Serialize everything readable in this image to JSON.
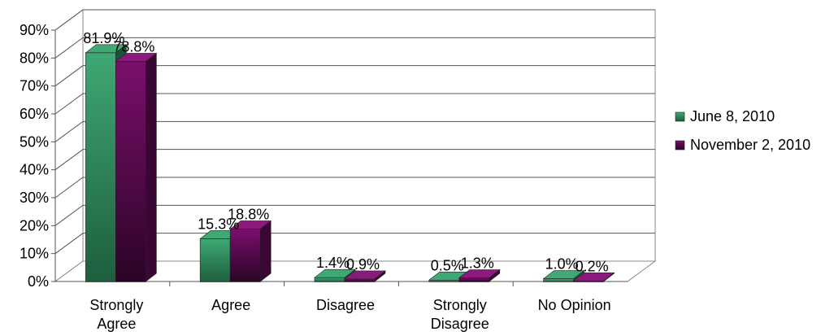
{
  "chart_data": {
    "type": "bar",
    "categories": [
      [
        "Strongly",
        "Agree"
      ],
      [
        "Agree"
      ],
      [
        "Disagree"
      ],
      [
        "Strongly",
        "Disagree"
      ],
      [
        "No Opinion"
      ]
    ],
    "series": [
      {
        "name": "June 8, 2010",
        "color": "#2e8b57",
        "values": [
          81.9,
          15.3,
          1.4,
          0.5,
          1.0
        ],
        "labels": [
          "81.9%",
          "15.3%",
          "1.4%",
          "0.5%",
          "1.0%"
        ]
      },
      {
        "name": "November 2, 2010",
        "color": "#6b0a5e",
        "values": [
          78.8,
          18.8,
          0.9,
          1.3,
          0.2
        ],
        "labels": [
          "78.8%",
          "18.8%",
          "0.9%",
          "1.3%",
          "0.2%"
        ]
      }
    ],
    "yticks": [
      "0%",
      "10%",
      "20%",
      "30%",
      "40%",
      "50%",
      "60%",
      "70%",
      "80%",
      "90%"
    ],
    "ylim": [
      0,
      90
    ],
    "grid": true,
    "legend_position": "right"
  }
}
